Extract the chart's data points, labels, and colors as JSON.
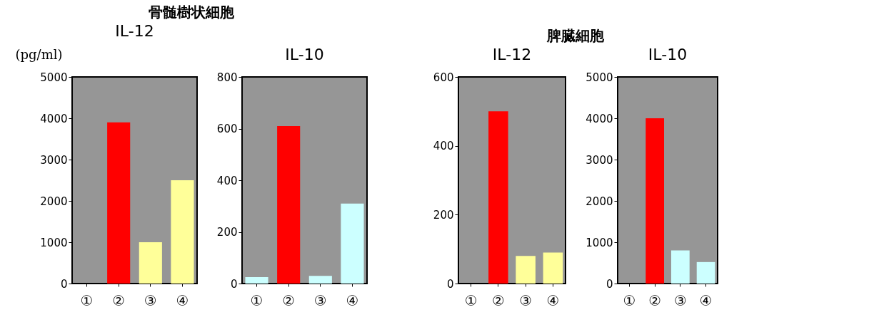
{
  "chart_data": [
    {
      "type": "bar",
      "title": "骨髄樹状細胞",
      "subtitle": "IL-12",
      "ylabel": "(pg/ml)",
      "categories": [
        "①",
        "②",
        "③",
        "④"
      ],
      "values": [
        0,
        3900,
        1000,
        2500
      ],
      "colors": [
        "#ffff99",
        "#ff0000",
        "#ffff99",
        "#ffff99"
      ],
      "ylim": [
        0,
        5000
      ],
      "yticks": [
        0,
        1000,
        2000,
        3000,
        4000,
        5000
      ],
      "grid": false
    },
    {
      "type": "bar",
      "subtitle": "IL-10",
      "categories": [
        "①",
        "②",
        "③",
        "④"
      ],
      "values": [
        25,
        610,
        30,
        310
      ],
      "colors": [
        "#ccffff",
        "#ff0000",
        "#ccffff",
        "#ccffff"
      ],
      "ylim": [
        0,
        800
      ],
      "yticks": [
        0,
        200,
        400,
        600,
        800
      ],
      "grid": false
    },
    {
      "type": "bar",
      "title": "脾臓細胞",
      "subtitle": "IL-12",
      "categories": [
        "①",
        "②",
        "③",
        "④"
      ],
      "values": [
        0,
        500,
        80,
        90
      ],
      "colors": [
        "#ffff99",
        "#ff0000",
        "#ffff99",
        "#ffff99"
      ],
      "ylim": [
        0,
        600
      ],
      "yticks": [
        0,
        200,
        400,
        600
      ],
      "grid": false
    },
    {
      "type": "bar",
      "subtitle": "IL-10",
      "categories": [
        "①",
        "②",
        "③",
        "④"
      ],
      "values": [
        0,
        4000,
        800,
        520
      ],
      "colors": [
        "#ccffff",
        "#ff0000",
        "#ccffff",
        "#ccffff"
      ],
      "ylim": [
        0,
        5000
      ],
      "yticks": [
        0,
        1000,
        2000,
        3000,
        4000,
        5000
      ],
      "grid": false
    }
  ]
}
